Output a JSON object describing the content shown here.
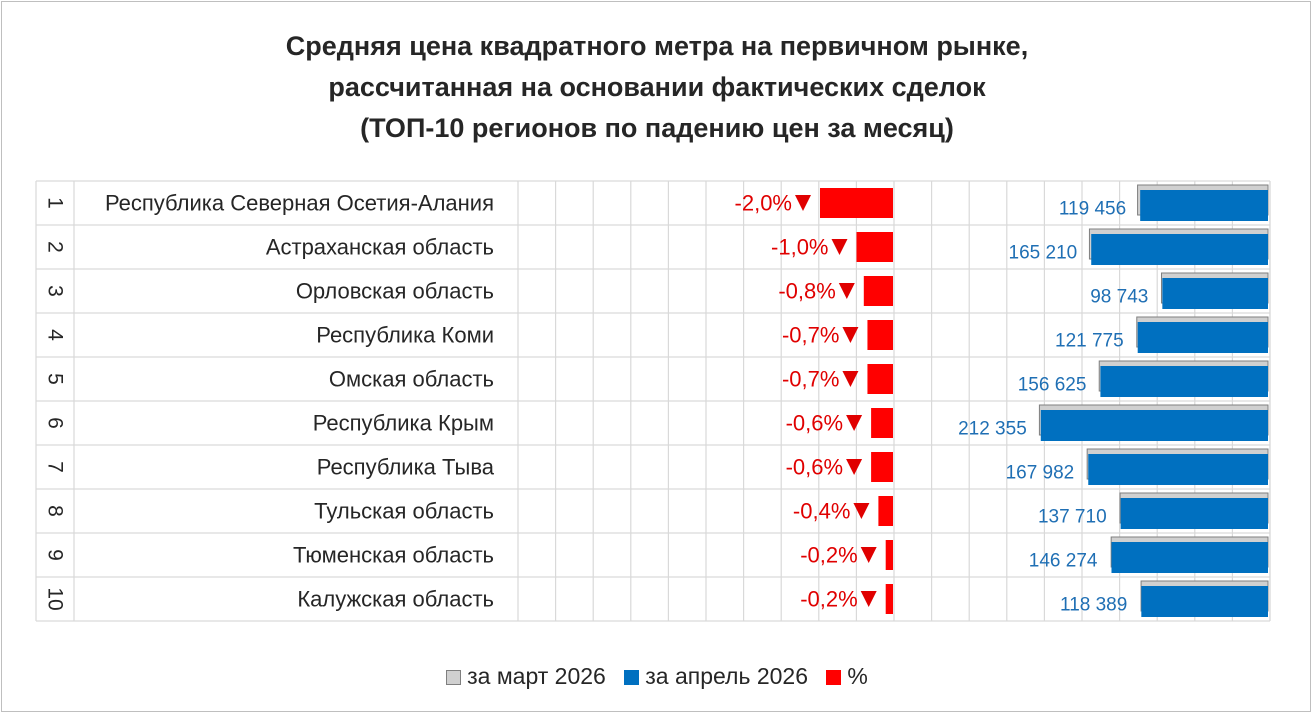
{
  "title_lines": [
    "Средняя цена квадратного метра на первичном рынке,",
    "рассчитанная на основании фактических сделок",
    "(ТОП-10 регионов по падению цен за месяц)"
  ],
  "legend": {
    "march": "за март 2026",
    "april": "за апрель 2026",
    "percent": "%"
  },
  "colors": {
    "march": "#d0d0d0",
    "april": "#0070c0",
    "percent": "#ff0000",
    "value_label": "#1f6fb4",
    "percent_label": "#e00000",
    "grid": "#d9d9d9"
  },
  "chart_data": {
    "type": "bar",
    "orientation": "horizontal",
    "title": "Средняя цена квадратного метра на первичном рынке, рассчитанная на основании фактических сделок (ТОП-10 регионов по падению цен за месяц)",
    "ranks": [
      "1",
      "2",
      "3",
      "4",
      "5",
      "6",
      "7",
      "8",
      "9",
      "10"
    ],
    "categories": [
      "Республика Северная Осетия-Алания",
      "Астраханская область",
      "Орловская область",
      "Республика Коми",
      "Омская область",
      "Республика Крым",
      "Республика Тыва",
      "Тульская область",
      "Тюменская область",
      "Калужская область"
    ],
    "percent_labels": [
      "-2,0%",
      "-1,0%",
      "-0,8%",
      "-0,7%",
      "-0,7%",
      "-0,6%",
      "-0,6%",
      "-0,4%",
      "-0,2%",
      "-0,2%"
    ],
    "percent_values": [
      -2.0,
      -1.0,
      -0.8,
      -0.7,
      -0.7,
      -0.6,
      -0.6,
      -0.4,
      -0.2,
      -0.2
    ],
    "april_labels": [
      "119 456",
      "165 210",
      "98 743",
      "121 775",
      "156 625",
      "212 355",
      "167 982",
      "137 710",
      "146 274",
      "118 389"
    ],
    "series": [
      {
        "name": "за март 2026",
        "values": [
          121894,
          166879,
          99539,
          122633,
          157728,
          213637,
          169000,
          138263,
          146567,
          118626
        ]
      },
      {
        "name": "за апрель 2026",
        "values": [
          119456,
          165210,
          98743,
          121775,
          156625,
          212355,
          167982,
          137710,
          146274,
          118389
        ]
      },
      {
        "name": "%",
        "values": [
          -2.0,
          -1.0,
          -0.8,
          -0.7,
          -0.7,
          -0.6,
          -0.6,
          -0.4,
          -0.2,
          -0.2
        ]
      }
    ],
    "grid": true,
    "legend_position": "bottom"
  }
}
